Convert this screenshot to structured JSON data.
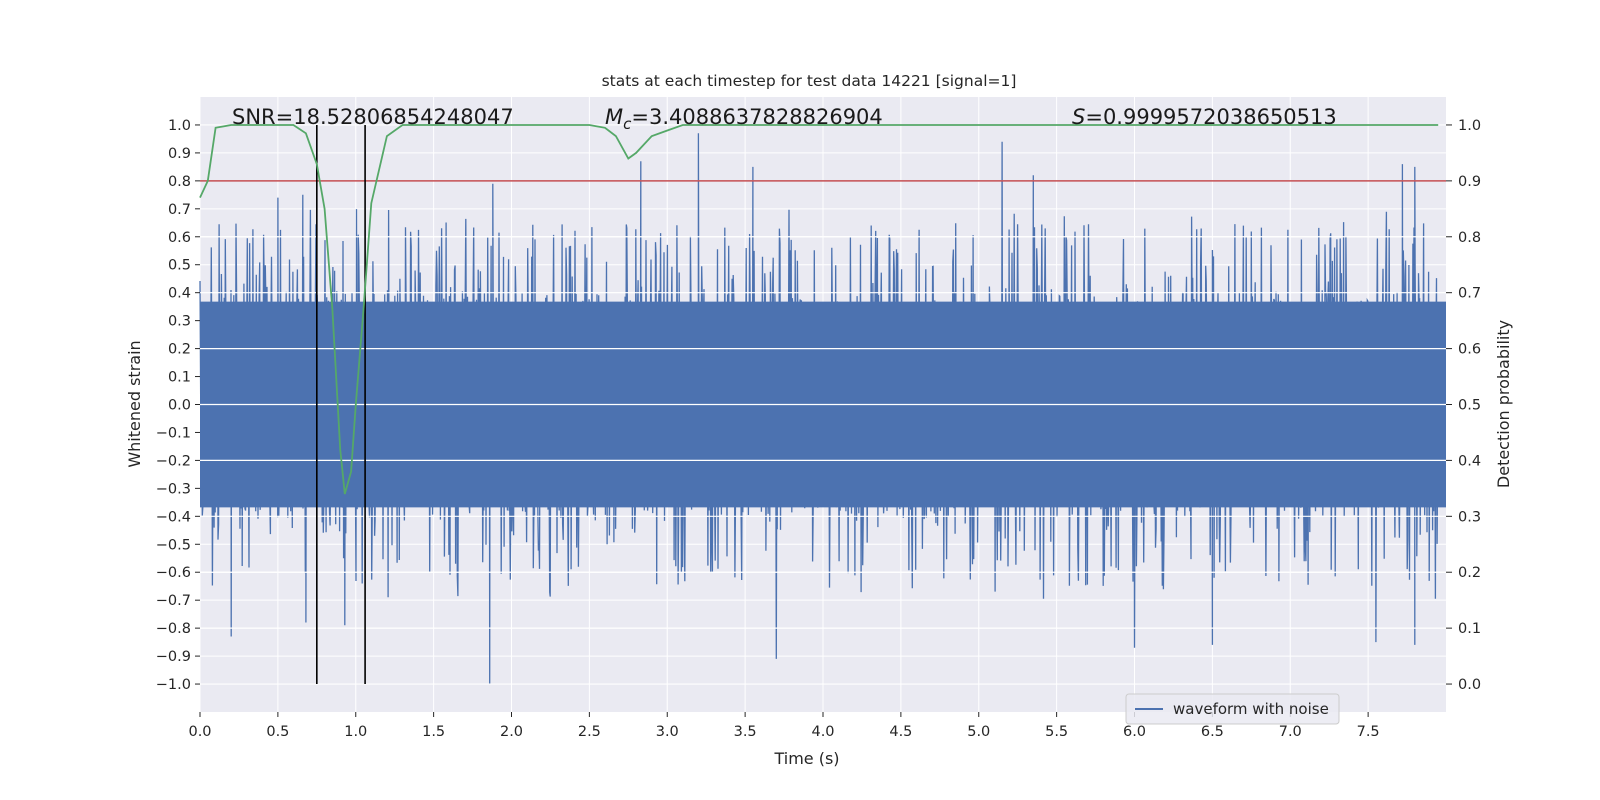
{
  "chart_data": {
    "type": "line",
    "title": "stats at each timestep for test data 14221 [signal=1]",
    "xlabel": "Time (s)",
    "ylabel": "Whitened strain",
    "y2label": "Detection probability",
    "xlim": [
      0.0,
      8.0
    ],
    "ylim": [
      -1.1,
      1.1
    ],
    "y2lim": [
      -0.05,
      1.05
    ],
    "xticks": [
      "0.0",
      "0.5",
      "1.0",
      "1.5",
      "2.0",
      "2.5",
      "3.0",
      "3.5",
      "4.0",
      "4.5",
      "5.0",
      "5.5",
      "6.0",
      "6.5",
      "7.0",
      "7.5"
    ],
    "xtick_values": [
      0.0,
      0.5,
      1.0,
      1.5,
      2.0,
      2.5,
      3.0,
      3.5,
      4.0,
      4.5,
      5.0,
      5.5,
      6.0,
      6.5,
      7.0,
      7.5
    ],
    "yticks": [
      "1.0",
      "0.9",
      "0.8",
      "0.7",
      "0.6",
      "0.5",
      "0.4",
      "0.3",
      "0.2",
      "0.1",
      "0.0",
      "−0.1",
      "−0.2",
      "−0.3",
      "−0.4",
      "−0.5",
      "−0.6",
      "−0.7",
      "−0.8",
      "−0.9",
      "−1.0"
    ],
    "ytick_values": [
      1.0,
      0.9,
      0.8,
      0.7,
      0.6,
      0.5,
      0.4,
      0.3,
      0.2,
      0.1,
      0.0,
      -0.1,
      -0.2,
      -0.3,
      -0.4,
      -0.5,
      -0.6,
      -0.7,
      -0.8,
      -0.9,
      -1.0
    ],
    "y2ticks": [
      "1.0",
      "0.9",
      "0.8",
      "0.7",
      "0.6",
      "0.5",
      "0.4",
      "0.3",
      "0.2",
      "0.1",
      "0.0"
    ],
    "y2tick_values": [
      1.0,
      0.9,
      0.8,
      0.7,
      0.6,
      0.5,
      0.4,
      0.3,
      0.2,
      0.1,
      0.0
    ],
    "annotations": {
      "snr": "SNR=18.52806854248047",
      "mc_symbol": "M",
      "mc_sub": "c",
      "mc_value": "=3.4088637828826904",
      "s_symbol": "S",
      "s_value": "=0.9999572038650513"
    },
    "legend": {
      "label": "waveform with noise",
      "placement": "lower-right"
    },
    "series": [
      {
        "name": "waveform with noise",
        "color": "#4c72b0",
        "axis": "left",
        "envelope": {
          "note": "dense noisy strain signal sampled over 0-8 s",
          "core_amplitude": 0.4,
          "typical_peak": 0.55,
          "spikes": [
            {
              "t": 0.2,
              "v": -0.83
            },
            {
              "t": 0.5,
              "v": 0.74
            },
            {
              "t": 0.66,
              "v": 0.75
            },
            {
              "t": 0.68,
              "v": -0.78
            },
            {
              "t": 0.93,
              "v": -0.79
            },
            {
              "t": 1.88,
              "v": 0.79
            },
            {
              "t": 1.86,
              "v": -1.0
            },
            {
              "t": 2.83,
              "v": 0.87
            },
            {
              "t": 3.2,
              "v": 0.97
            },
            {
              "t": 3.55,
              "v": 0.85
            },
            {
              "t": 3.7,
              "v": -0.91
            },
            {
              "t": 5.15,
              "v": 0.94
            },
            {
              "t": 5.35,
              "v": 0.82
            },
            {
              "t": 6.0,
              "v": -0.87
            },
            {
              "t": 6.5,
              "v": -0.86
            },
            {
              "t": 7.55,
              "v": -0.85
            },
            {
              "t": 7.8,
              "v": -0.86
            },
            {
              "t": 7.72,
              "v": 0.86
            },
            {
              "t": 7.8,
              "v": 0.85
            }
          ]
        }
      },
      {
        "name": "detection probability",
        "color": "#55a868",
        "axis": "right",
        "x": [
          0.0,
          0.05,
          0.1,
          0.2,
          0.3,
          0.5,
          0.6,
          0.68,
          0.75,
          0.8,
          0.85,
          0.9,
          0.93,
          0.97,
          1.0,
          1.05,
          1.1,
          1.2,
          1.3,
          1.5,
          2.0,
          2.5,
          2.6,
          2.67,
          2.75,
          2.8,
          2.85,
          2.9,
          3.0,
          3.1,
          3.2,
          4.0,
          5.0,
          6.0,
          7.0,
          7.95
        ],
        "values": [
          0.87,
          0.9,
          0.995,
          1.0,
          1.0,
          1.0,
          1.0,
          0.985,
          0.93,
          0.85,
          0.67,
          0.42,
          0.34,
          0.38,
          0.5,
          0.67,
          0.86,
          0.98,
          1.0,
          1.0,
          1.0,
          1.0,
          0.995,
          0.98,
          0.94,
          0.95,
          0.965,
          0.98,
          0.99,
          1.0,
          1.0,
          1.0,
          1.0,
          1.0,
          1.0,
          1.0
        ]
      }
    ],
    "threshold": {
      "value": 0.9,
      "axis": "right",
      "color": "#c44e52"
    },
    "vertical_markers": [
      0.75,
      1.06
    ],
    "marker_color": "#000000"
  }
}
